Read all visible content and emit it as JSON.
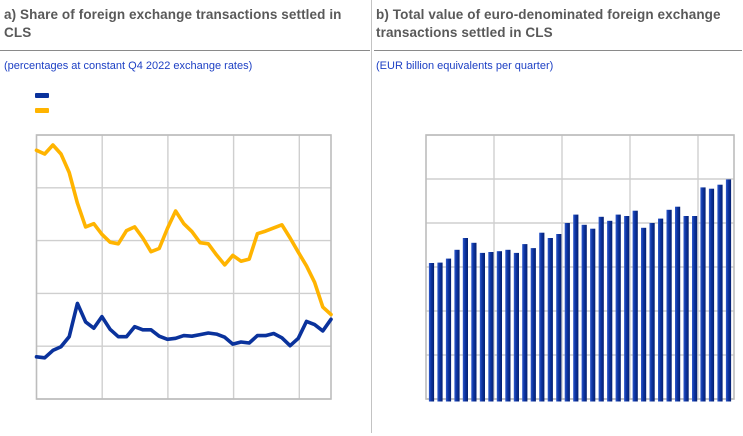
{
  "colors": {
    "background": "#ffffff",
    "title_gray": "#595959",
    "subtitle_blue": "#1c3fc4",
    "ecb_blue": "#0a329c",
    "ecb_yellow": "#ffb400",
    "gridline": "#cfcfcf",
    "plot_border": "#bdbdbd",
    "title_rule": "#8a8a8a",
    "divider": "#c3c3c3"
  },
  "panel_a": {
    "title": "a) Share of foreign exchange transactions settled in CLS",
    "subtitle": "(percentages at constant Q4 2022 exchange rates)",
    "legend": [
      {
        "name": "blue-line",
        "color": "#0a329c"
      },
      {
        "name": "yellow-line",
        "color": "#ffb400"
      }
    ],
    "chart_data": {
      "type": "line",
      "title": "a) Share of foreign exchange transactions settled in CLS",
      "subtitle": "(percentages at constant Q4 2022 exchange rates)",
      "ylim": [
        0,
        50
      ],
      "y_gridline_step": 10,
      "x_tick_labels": [],
      "y_tick_labels": [],
      "grid": "on",
      "series": [
        {
          "name": "blue-line",
          "color": "#0a329c",
          "values": [
            8.0,
            7.8,
            9.2,
            9.9,
            11.8,
            18.1,
            14.6,
            13.4,
            15.6,
            13.2,
            11.8,
            11.8,
            13.7,
            13.1,
            13.1,
            11.9,
            11.3,
            11.5,
            12.0,
            11.9,
            12.2,
            12.5,
            12.3,
            11.7,
            10.4,
            10.8,
            10.6,
            12.0,
            12.0,
            12.4,
            11.6,
            10.1,
            11.5,
            14.7,
            14.1,
            12.9,
            15.1
          ]
        },
        {
          "name": "yellow-line",
          "color": "#ffb400",
          "values": [
            47.1,
            46.4,
            48.1,
            46.4,
            42.9,
            37.1,
            32.6,
            33.2,
            31.2,
            29.7,
            29.4,
            31.9,
            32.6,
            30.5,
            27.9,
            28.5,
            32.3,
            35.6,
            33.2,
            31.7,
            29.6,
            29.4,
            27.3,
            25.4,
            27.2,
            26.1,
            26.5,
            31.3,
            31.8,
            32.4,
            33.0,
            30.5,
            27.8,
            25.2,
            22.1,
            17.4,
            16.0
          ]
        }
      ]
    }
  },
  "panel_b": {
    "title": "b) Total value of euro-denominated foreign exchange transactions settled in CLS",
    "subtitle": "(EUR billion equivalents per quarter)",
    "chart_data": {
      "type": "bar",
      "title": "b) Total value of euro-denominated foreign exchange transactions settled in CLS",
      "subtitle": "(EUR billion equivalents per quarter)",
      "ylim": [
        0,
        600
      ],
      "y_gridline_step": 100,
      "x_tick_labels": [],
      "y_tick_labels": [],
      "grid": "on",
      "bar_color": "#0a329c",
      "values": [
        309,
        310,
        319,
        339,
        366,
        355,
        332,
        334,
        336,
        339,
        332,
        352,
        343,
        378,
        366,
        375,
        400,
        419,
        396,
        387,
        414,
        405,
        419,
        416,
        428,
        389,
        400,
        410,
        430,
        437,
        416,
        416,
        481,
        478,
        487,
        499
      ]
    }
  }
}
